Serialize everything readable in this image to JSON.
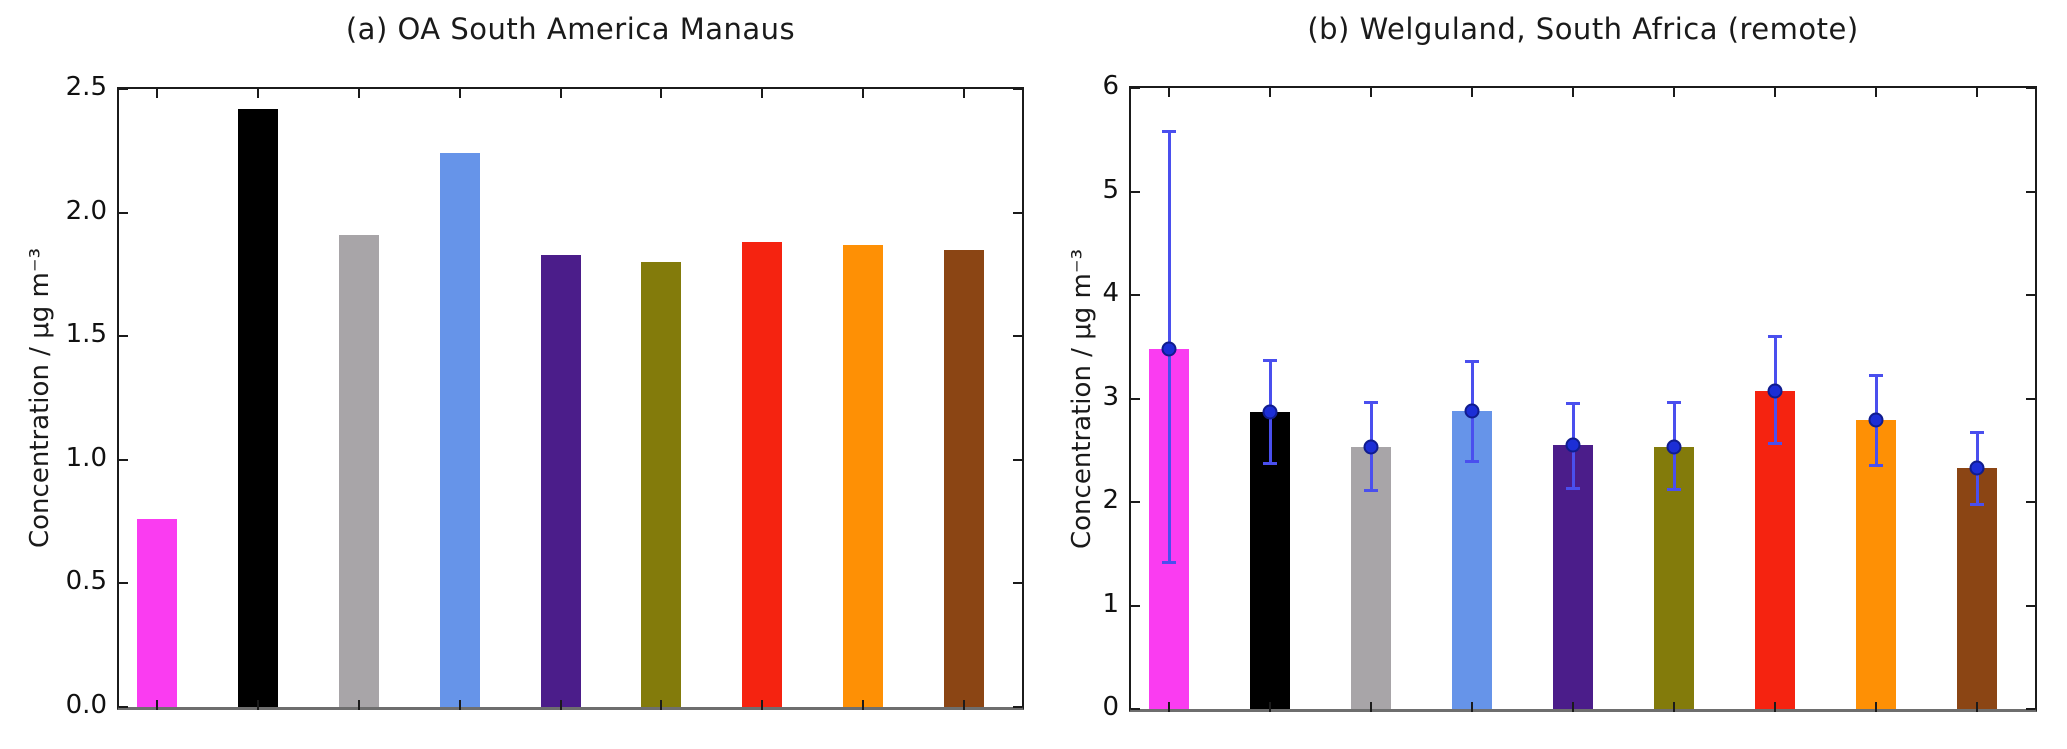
{
  "figure": {
    "background": "#ffffff",
    "axis_frame_color": "#1b1b1b",
    "baseline_color": "#6e6e6e"
  },
  "chart_data": [
    {
      "type": "bar",
      "panel": "a",
      "title": "(a) OA South America Manaus",
      "ylabel": "Concentration / μg m⁻³",
      "xlabel": "",
      "ylim": [
        0,
        2.5
      ],
      "ytick_labels": [
        "0.0",
        "0.5",
        "1.0",
        "1.5",
        "2.0",
        "2.5"
      ],
      "ytick_values": [
        0,
        0.5,
        1.0,
        1.5,
        2.0,
        2.5
      ],
      "grid": false,
      "legend": null,
      "bar_color_names": [
        "magenta",
        "black",
        "gray",
        "cornflower-blue",
        "dark-purple",
        "olive",
        "red",
        "orange",
        "brown"
      ],
      "colors": [
        "#fa3cf1",
        "#000000",
        "#a8a5a8",
        "#6694e9",
        "#4b1d8a",
        "#837b0b",
        "#f52310",
        "#fe9005",
        "#8b4514"
      ],
      "values": [
        0.76,
        2.42,
        1.91,
        2.24,
        1.83,
        1.8,
        1.88,
        1.87,
        1.85
      ]
    },
    {
      "type": "bar",
      "panel": "b",
      "title": "(b) Welguland, South Africa (remote)",
      "ylabel": "Concentration / μg m⁻³",
      "xlabel": "",
      "ylim": [
        0,
        6
      ],
      "ytick_labels": [
        "0",
        "1",
        "2",
        "3",
        "4",
        "5",
        "6"
      ],
      "ytick_values": [
        0,
        1,
        2,
        3,
        4,
        5,
        6
      ],
      "grid": false,
      "legend": null,
      "bar_color_names": [
        "magenta",
        "black",
        "gray",
        "cornflower-blue",
        "dark-purple",
        "olive",
        "red",
        "orange",
        "brown"
      ],
      "colors": [
        "#fa3cf1",
        "#000000",
        "#a8a5a8",
        "#6694e9",
        "#4b1d8a",
        "#837b0b",
        "#f52310",
        "#fe9005",
        "#8b4514"
      ],
      "values": [
        3.48,
        2.87,
        2.53,
        2.88,
        2.55,
        2.53,
        3.07,
        2.79,
        2.33
      ],
      "error_low": [
        1.41,
        2.37,
        2.11,
        2.39,
        2.13,
        2.12,
        2.56,
        2.35,
        1.97
      ],
      "error_high": [
        5.58,
        3.37,
        2.97,
        3.36,
        2.96,
        2.97,
        3.6,
        3.23,
        2.68
      ],
      "error_color": "#4a4fee",
      "marker_color": "#1c2ed6",
      "marker_edge_color": "#101c8e"
    }
  ]
}
